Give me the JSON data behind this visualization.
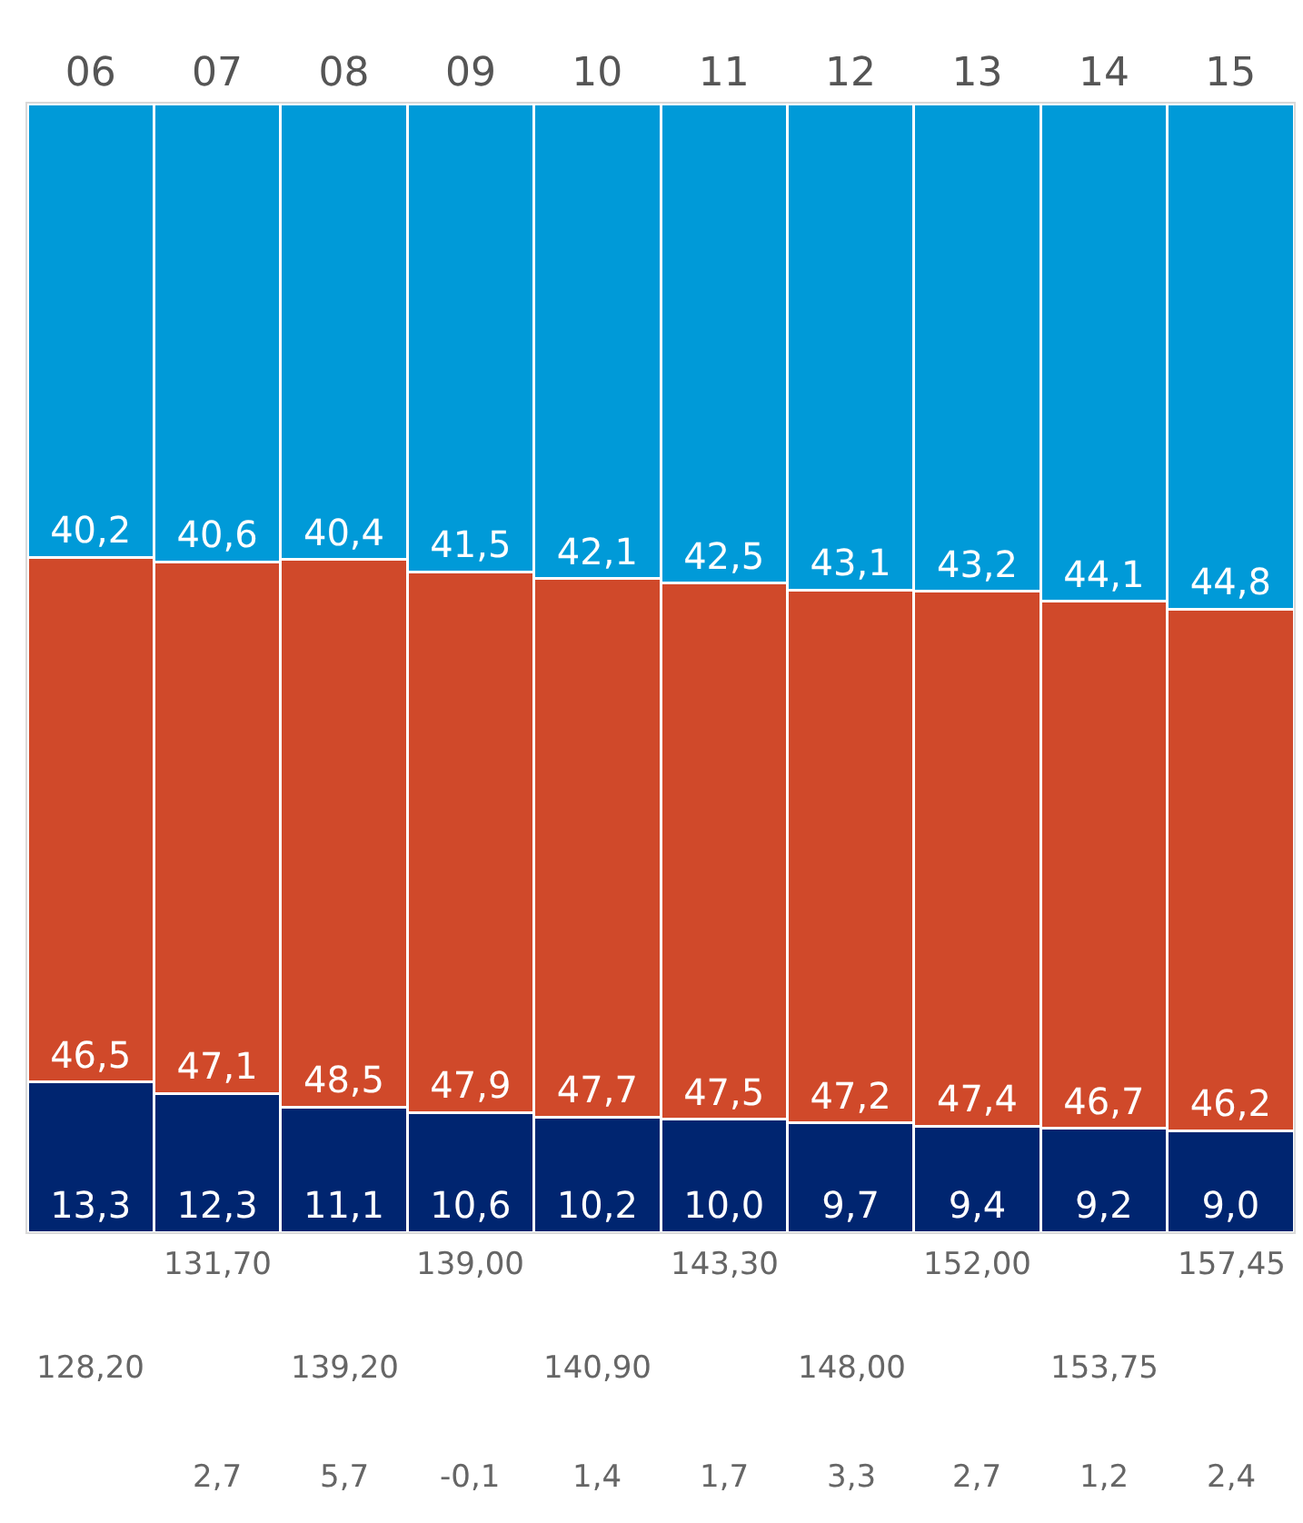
{
  "chart_data": {
    "type": "bar",
    "stacked": true,
    "categories": [
      "06",
      "07",
      "08",
      "09",
      "10",
      "11",
      "12",
      "13",
      "14",
      "15"
    ],
    "ylim": [
      0,
      100
    ],
    "tick_labels": "x",
    "series": [
      {
        "color": "#002570",
        "values": [
          13.3,
          12.3,
          11.1,
          10.6,
          10.2,
          10.0,
          9.7,
          9.4,
          9.2,
          9.0
        ],
        "value_labels": [
          "13,3",
          "12,3",
          "11,1",
          "10,6",
          "10,2",
          "10,0",
          "9,7",
          "9,4",
          "9,2",
          "9,0"
        ]
      },
      {
        "color": "#d0492a",
        "values": [
          46.5,
          47.1,
          48.5,
          47.9,
          47.7,
          47.5,
          47.2,
          47.4,
          46.7,
          46.2
        ],
        "value_labels": [
          "46,5",
          "47,1",
          "48,5",
          "47,9",
          "47,7",
          "47,5",
          "47,2",
          "47,4",
          "46,7",
          "46,2"
        ]
      },
      {
        "color": "#009ad8",
        "values": [
          40.2,
          40.6,
          40.4,
          41.5,
          42.1,
          42.5,
          43.1,
          43.2,
          44.1,
          44.8
        ],
        "value_labels": [
          "40,2",
          "40,6",
          "40,4",
          "41,5",
          "42,1",
          "42,5",
          "43,1",
          "43,2",
          "44,1",
          "44,8"
        ]
      }
    ],
    "annotations": [
      "128,20",
      "131,70",
      "139,20",
      "139,00",
      "140,90",
      "143,30",
      "148,00",
      "152,00",
      "153,75",
      "157,45",
      "2,7",
      "5,7",
      "-0,1",
      "1,4",
      "1,7",
      "3,3",
      "2,7",
      "1,2",
      "2,4"
    ]
  }
}
